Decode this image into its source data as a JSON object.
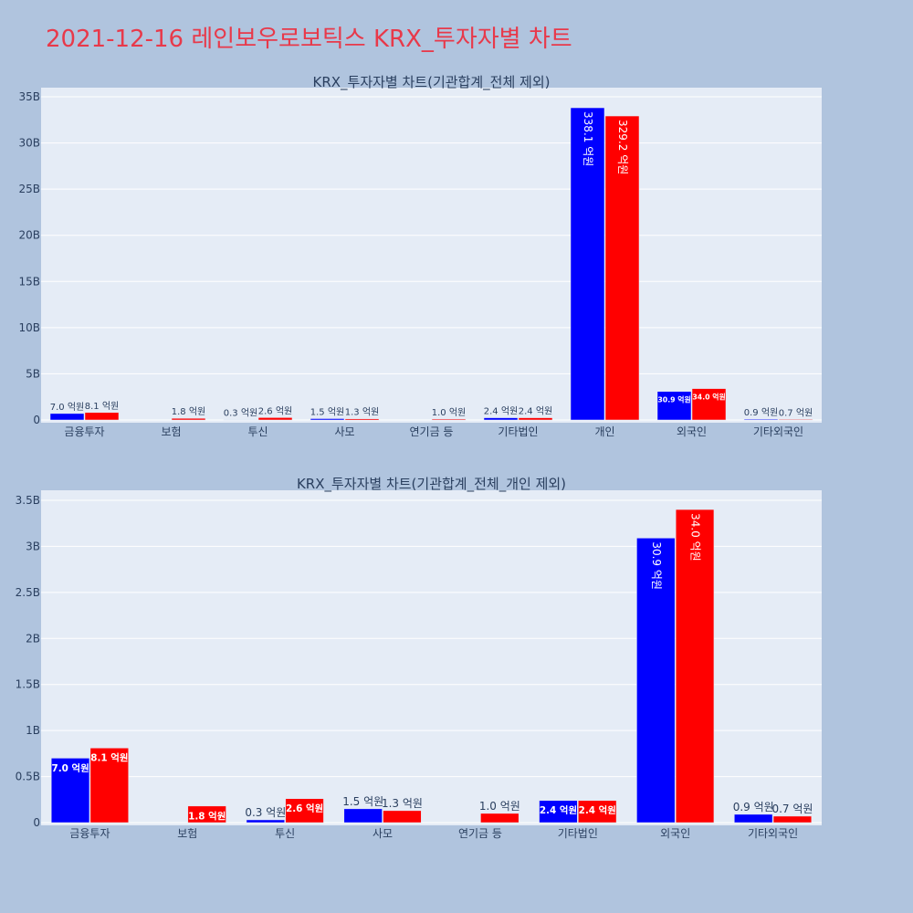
{
  "page_title": "2021-12-16 레인보우로보틱스 KRX_투자자별 차트",
  "colors": {
    "series1": "#0000ff",
    "series2": "#ff0000",
    "plot_bg": "#e5ecf6",
    "page_bg": "#b0c4de",
    "title": "#e8394a"
  },
  "chart_data": [
    {
      "type": "bar",
      "title": "KRX_투자자별 차트(기관합계_전체 제외)",
      "categories": [
        "금융투자",
        "보험",
        "투신",
        "사모",
        "연기금 등",
        "기타법인",
        "개인",
        "외국인",
        "기타외국인"
      ],
      "y_tick_labels": [
        "0",
        "5B",
        "10B",
        "15B",
        "20B",
        "25B",
        "30B",
        "35B"
      ],
      "ylim": [
        0,
        35000000000
      ],
      "y_ticks": [
        0,
        5000000000,
        10000000000,
        15000000000,
        20000000000,
        25000000000,
        30000000000,
        35000000000
      ],
      "grid": true,
      "series": [
        {
          "values": [
            700000000,
            0,
            30000000,
            150000000,
            0,
            240000000,
            33810000000,
            3090000000,
            90000000
          ],
          "labels": [
            "7.0 억원",
            "",
            "0.3 억원",
            "1.5 억원",
            "",
            "2.4 억원",
            "338.1 억원",
            "30.9 억원",
            "0.9 억원"
          ]
        },
        {
          "values": [
            810000000,
            180000000,
            260000000,
            130000000,
            100000000,
            240000000,
            32920000000,
            3400000000,
            70000000
          ],
          "labels": [
            "8.1 억원",
            "1.8 억원",
            "2.6 억원",
            "1.3 억원",
            "1.0 억원",
            "2.4 억원",
            "329.2 억원",
            "34.0 억원",
            "0.7 억원"
          ]
        }
      ]
    },
    {
      "type": "bar",
      "title": "KRX_투자자별 차트(기관합계_전체_개인 제외)",
      "categories": [
        "금융투자",
        "보험",
        "투신",
        "사모",
        "연기금 등",
        "기타법인",
        "외국인",
        "기타외국인"
      ],
      "y_tick_labels": [
        "0",
        "0.5B",
        "1B",
        "1.5B",
        "2B",
        "2.5B",
        "3B",
        "3.5B"
      ],
      "ylim": [
        0,
        3500000000
      ],
      "y_ticks": [
        0,
        500000000,
        1000000000,
        1500000000,
        2000000000,
        2500000000,
        3000000000,
        3500000000
      ],
      "grid": true,
      "series": [
        {
          "values": [
            700000000,
            0,
            30000000,
            150000000,
            0,
            240000000,
            3090000000,
            90000000
          ],
          "labels": [
            "7.0 억원",
            "",
            "0.3 억원",
            "1.5 억원",
            "",
            "2.4 억원",
            "30.9 억원",
            "0.9 억원"
          ]
        },
        {
          "values": [
            810000000,
            180000000,
            260000000,
            130000000,
            100000000,
            240000000,
            3400000000,
            70000000
          ],
          "labels": [
            "8.1 억원",
            "1.8 억원",
            "2.6 억원",
            "1.3 억원",
            "1.0 억원",
            "2.4 억원",
            "34.0 억원",
            "0.7 억원"
          ]
        }
      ]
    }
  ]
}
